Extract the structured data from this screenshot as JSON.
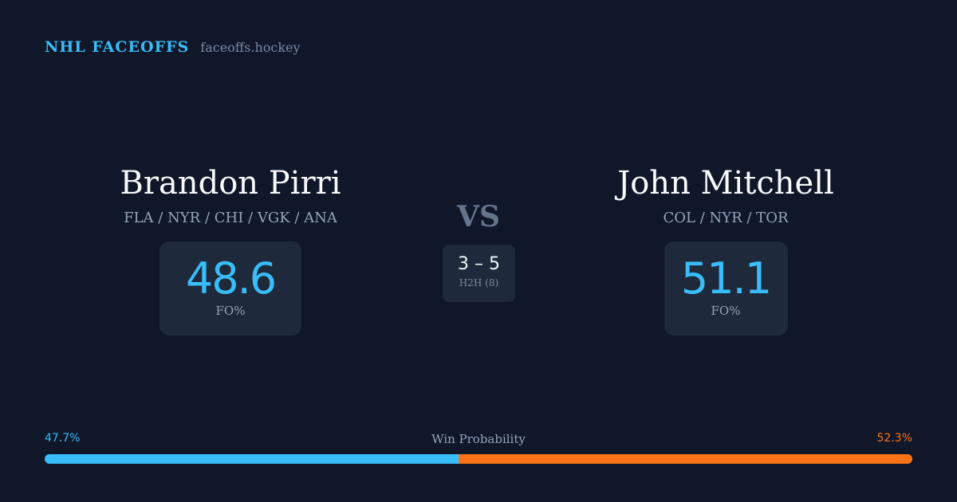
{
  "brand": {
    "name": "NHL FACEOFFS",
    "site": "faceoffs.hockey"
  },
  "player_left": {
    "name": "Brandon Pirri",
    "teams": "FLA / NYR / CHI / VGK / ANA",
    "fo_value": "48.6",
    "fo_label": "FO%"
  },
  "player_right": {
    "name": "John Mitchell",
    "teams": "COL / NYR / TOR",
    "fo_value": "51.1",
    "fo_label": "FO%"
  },
  "matchup": {
    "vs_label": "VS",
    "h2h_score": "3 – 5",
    "h2h_label": "H2H (8)"
  },
  "win_probability": {
    "title": "Win Probability",
    "left_label": "47.7%",
    "right_label": "52.3%",
    "left_fraction": 0.477,
    "right_fraction": 0.523
  },
  "colors": {
    "background": "#0f1729",
    "accent_left": "#38bdf8",
    "accent_right": "#f97316",
    "card": "#1e293b"
  }
}
